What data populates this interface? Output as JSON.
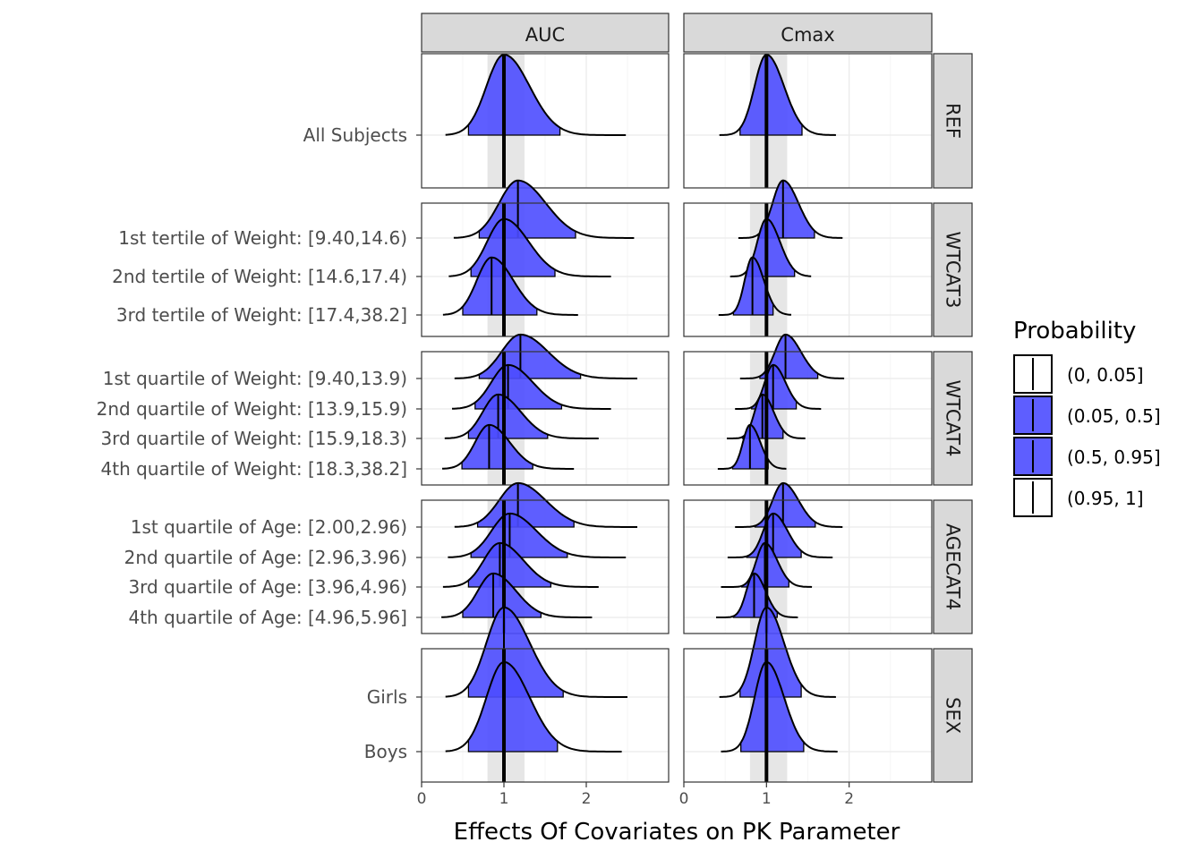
{
  "chart_data": {
    "type": "ridgeline-density",
    "xlabel": "Effects Of Covariates on PK Parameter",
    "xlim": [
      0,
      3
    ],
    "x_ticks": [
      0,
      1,
      2
    ],
    "reference_line": 1,
    "reference_band": [
      0.8,
      1.25
    ],
    "columns": [
      "AUC",
      "Cmax"
    ],
    "fill_color": "#4d4dff",
    "band_color": "#e6e6e6",
    "legend": {
      "title": "Probability",
      "placement": "right",
      "items": [
        {
          "label": "(0, 0.05]",
          "filled": false
        },
        {
          "label": "(0.05, 0.5]",
          "filled": true
        },
        {
          "label": "(0.5, 0.95]",
          "filled": true
        },
        {
          "label": "(0.95, 1]",
          "filled": false
        }
      ]
    },
    "rows": [
      {
        "name": "REF",
        "groups": [
          "All Subjects"
        ],
        "curves": {
          "AUC": [
            {
              "median": 1.0,
              "lo": 0.57,
              "hi": 1.68,
              "min": 0.29,
              "max": 2.48,
              "sd": 0.25,
              "height": 1.0
            }
          ],
          "Cmax": [
            {
              "median": 1.0,
              "lo": 0.68,
              "hi": 1.43,
              "min": 0.43,
              "max": 1.84,
              "sd": 0.17,
              "height": 1.0
            }
          ]
        }
      },
      {
        "name": "WTCAT3",
        "groups": [
          "1st tertile of Weight: [9.40,14.6)",
          "2nd tertile of Weight: [14.6,17.4)",
          "3rd tertile of Weight: [17.4,38.2]"
        ],
        "curves": {
          "AUC": [
            {
              "median": 1.17,
              "lo": 0.7,
              "hi": 1.87,
              "min": 0.39,
              "max": 2.58,
              "sd": 0.27,
              "height": 0.88
            },
            {
              "median": 1.0,
              "lo": 0.6,
              "hi": 1.62,
              "min": 0.33,
              "max": 2.3,
              "sd": 0.24,
              "height": 0.88
            },
            {
              "median": 0.85,
              "lo": 0.5,
              "hi": 1.4,
              "min": 0.26,
              "max": 1.9,
              "sd": 0.21,
              "height": 0.88
            }
          ],
          "Cmax": [
            {
              "median": 1.2,
              "lo": 0.9,
              "hi": 1.58,
              "min": 0.66,
              "max": 1.92,
              "sd": 0.15,
              "height": 0.88
            },
            {
              "median": 1.0,
              "lo": 0.76,
              "hi": 1.34,
              "min": 0.56,
              "max": 1.54,
              "sd": 0.13,
              "height": 0.88
            },
            {
              "median": 0.83,
              "lo": 0.6,
              "hi": 1.08,
              "min": 0.42,
              "max": 1.3,
              "sd": 0.11,
              "height": 0.88
            }
          ]
        }
      },
      {
        "name": "WTCAT4",
        "groups": [
          "1st quartile of Weight: [9.40,13.9)",
          "2nd quartile of Weight: [13.9,15.9)",
          "3rd quartile of Weight: [15.9,18.3)",
          "4th quartile of Weight: [18.3,38.2]"
        ],
        "curves": {
          "AUC": [
            {
              "median": 1.2,
              "lo": 0.7,
              "hi": 1.93,
              "min": 0.4,
              "max": 2.62,
              "sd": 0.27,
              "height": 0.85
            },
            {
              "median": 1.05,
              "lo": 0.65,
              "hi": 1.7,
              "min": 0.37,
              "max": 2.3,
              "sd": 0.24,
              "height": 0.85
            },
            {
              "median": 0.93,
              "lo": 0.57,
              "hi": 1.53,
              "min": 0.28,
              "max": 2.15,
              "sd": 0.22,
              "height": 0.85
            },
            {
              "median": 0.82,
              "lo": 0.49,
              "hi": 1.35,
              "min": 0.25,
              "max": 1.85,
              "sd": 0.2,
              "height": 0.85
            }
          ],
          "Cmax": [
            {
              "median": 1.23,
              "lo": 0.92,
              "hi": 1.62,
              "min": 0.68,
              "max": 1.94,
              "sd": 0.15,
              "height": 0.85
            },
            {
              "median": 1.08,
              "lo": 0.82,
              "hi": 1.36,
              "min": 0.62,
              "max": 1.66,
              "sd": 0.12,
              "height": 0.85
            },
            {
              "median": 0.95,
              "lo": 0.71,
              "hi": 1.2,
              "min": 0.52,
              "max": 1.47,
              "sd": 0.11,
              "height": 0.85
            },
            {
              "median": 0.8,
              "lo": 0.59,
              "hi": 1.02,
              "min": 0.41,
              "max": 1.24,
              "sd": 0.1,
              "height": 0.85
            }
          ]
        }
      },
      {
        "name": "AGECAT4",
        "groups": [
          "1st quartile of Age: [2.00,2.96)",
          "2nd quartile of Age: [2.96,3.96)",
          "3rd quartile of Age: [3.96,4.96)",
          "4th quartile of Age: [4.96,5.96]"
        ],
        "curves": {
          "AUC": [
            {
              "median": 1.17,
              "lo": 0.68,
              "hi": 1.85,
              "min": 0.4,
              "max": 2.62,
              "sd": 0.27,
              "height": 0.85
            },
            {
              "median": 1.07,
              "lo": 0.6,
              "hi": 1.77,
              "min": 0.32,
              "max": 2.48,
              "sd": 0.26,
              "height": 0.85
            },
            {
              "median": 0.95,
              "lo": 0.57,
              "hi": 1.57,
              "min": 0.26,
              "max": 2.15,
              "sd": 0.23,
              "height": 0.85
            },
            {
              "median": 0.87,
              "lo": 0.5,
              "hi": 1.45,
              "min": 0.24,
              "max": 2.07,
              "sd": 0.22,
              "height": 0.85
            }
          ],
          "Cmax": [
            {
              "median": 1.2,
              "lo": 0.86,
              "hi": 1.59,
              "min": 0.62,
              "max": 1.92,
              "sd": 0.15,
              "height": 0.85
            },
            {
              "median": 1.08,
              "lo": 0.76,
              "hi": 1.42,
              "min": 0.53,
              "max": 1.8,
              "sd": 0.14,
              "height": 0.85
            },
            {
              "median": 0.98,
              "lo": 0.7,
              "hi": 1.27,
              "min": 0.45,
              "max": 1.55,
              "sd": 0.12,
              "height": 0.85
            },
            {
              "median": 0.85,
              "lo": 0.6,
              "hi": 1.13,
              "min": 0.39,
              "max": 1.38,
              "sd": 0.11,
              "height": 0.85
            }
          ]
        }
      },
      {
        "name": "SEX",
        "groups": [
          "Girls",
          "Boys"
        ],
        "curves": {
          "AUC": [
            {
              "median": 1.0,
              "lo": 0.57,
              "hi": 1.72,
              "min": 0.29,
              "max": 2.5,
              "sd": 0.25,
              "height": 0.95
            },
            {
              "median": 1.0,
              "lo": 0.57,
              "hi": 1.65,
              "min": 0.29,
              "max": 2.43,
              "sd": 0.25,
              "height": 0.95
            }
          ],
          "Cmax": [
            {
              "median": 1.0,
              "lo": 0.68,
              "hi": 1.42,
              "min": 0.43,
              "max": 1.84,
              "sd": 0.17,
              "height": 0.95
            },
            {
              "median": 1.0,
              "lo": 0.69,
              "hi": 1.45,
              "min": 0.45,
              "max": 1.86,
              "sd": 0.17,
              "height": 0.95
            }
          ]
        }
      }
    ]
  }
}
